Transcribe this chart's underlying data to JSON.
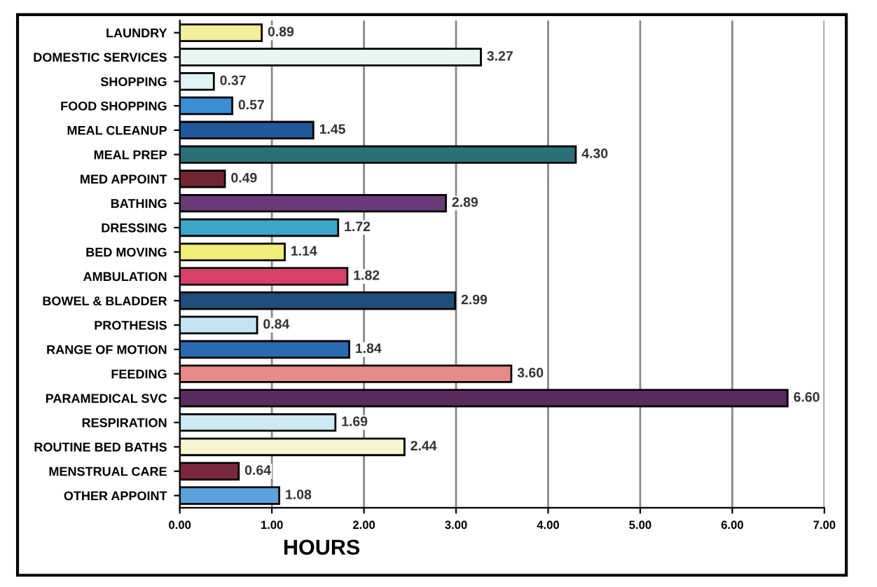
{
  "chart_data": {
    "type": "bar",
    "orientation": "horizontal",
    "xlabel": "HOURS",
    "categories": [
      "LAUNDRY",
      "DOMESTIC SERVICES",
      "SHOPPING",
      "FOOD SHOPPING",
      "MEAL CLEANUP",
      "MEAL PREP",
      "MED APPOINT",
      "BATHING",
      "DRESSING",
      "BED MOVING",
      "AMBULATION",
      "BOWEL & BLADDER",
      "PROTHESIS",
      "RANGE OF MOTION",
      "FEEDING",
      "PARAMEDICAL SVC",
      "RESPIRATION",
      "ROUTINE BED BATHS",
      "MENSTRUAL CARE",
      "OTHER APPOINT"
    ],
    "values": [
      0.89,
      3.27,
      0.37,
      0.57,
      1.45,
      4.3,
      0.49,
      2.89,
      1.72,
      1.14,
      1.82,
      2.99,
      0.84,
      1.84,
      3.6,
      6.6,
      1.69,
      2.44,
      0.64,
      1.08
    ],
    "value_labels": [
      "0.89",
      "3.27",
      "0.37",
      "0.57",
      "1.45",
      "4.30",
      "0.49",
      "2.89",
      "1.72",
      "1.14",
      "1.82",
      "2.99",
      "0.84",
      "1.84",
      "3.60",
      "6.60",
      "1.69",
      "2.44",
      "0.64",
      "1.08"
    ],
    "colors": [
      "#f4f09a",
      "#e6f6f0",
      "#dff2f6",
      "#3a8fd6",
      "#1f5a9a",
      "#2a7078",
      "#6e2630",
      "#6a3a78",
      "#3ea6c8",
      "#f2ec7a",
      "#d8406a",
      "#1e4e7a",
      "#c4e4f4",
      "#2a6ab0",
      "#e88a8a",
      "#5a2a60",
      "#cdeaf4",
      "#f8f6d2",
      "#7a2840",
      "#5aa2dc"
    ],
    "xlim": [
      0,
      7
    ],
    "xticks": [
      {
        "value": 0,
        "label": "0.00"
      },
      {
        "value": 1,
        "label": "1.00"
      },
      {
        "value": 2,
        "label": "2.00"
      },
      {
        "value": 3,
        "label": "3.00"
      },
      {
        "value": 4,
        "label": "4.00"
      },
      {
        "value": 5,
        "label": "5.00"
      },
      {
        "value": 6,
        "label": "6.00"
      },
      {
        "value": 7,
        "label": "7.00"
      }
    ],
    "grid": "x",
    "legend": false
  }
}
